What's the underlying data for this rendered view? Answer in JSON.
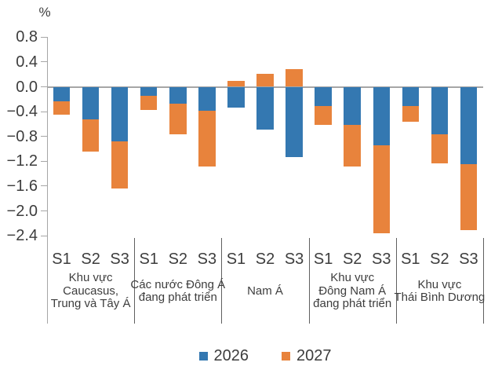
{
  "chart_data": {
    "type": "bar",
    "stacked": true,
    "title": "",
    "unit_label": "%",
    "ylim": [
      -2.4,
      0.8
    ],
    "yticks": [
      0.8,
      0.4,
      0.0,
      -0.4,
      -0.8,
      -1.2,
      -1.6,
      -2.0,
      -2.4
    ],
    "ytick_labels": [
      "0.8",
      "0.4",
      "0.0",
      "−0.4",
      "−0.8",
      "−1.2",
      "−1.6",
      "−2.0",
      "−2.4"
    ],
    "grid": false,
    "legend_position": "bottom",
    "seasons": [
      "S1",
      "S2",
      "S3"
    ],
    "series": [
      {
        "name": "2026",
        "color": "#3478B1"
      },
      {
        "name": "2027",
        "color": "#E8833C"
      }
    ],
    "groups": [
      {
        "label": "Khu vực Caucasus, Trung và Tây Á",
        "label_lines": [
          "Khu vực",
          "Caucasus,",
          "Trung và Tây Á"
        ],
        "values": [
          [
            -0.24,
            -0.52,
            -0.88
          ],
          [
            -0.21,
            -0.52,
            -0.76
          ]
        ]
      },
      {
        "label": "Các nước Đông Á đang phát triển",
        "label_lines": [
          "Các nước Đông Á",
          "đang phát triển"
        ],
        "values": [
          [
            -0.15,
            -0.27,
            -0.38
          ],
          [
            -0.22,
            -0.49,
            -0.9
          ]
        ]
      },
      {
        "label": "Nam Á",
        "label_lines": [
          "Nam Á"
        ],
        "values": [
          [
            -0.33,
            -0.69,
            -1.13
          ],
          [
            0.1,
            0.21,
            0.29
          ]
        ]
      },
      {
        "label": "Khu vực Đông Nam Á đang phát triển",
        "label_lines": [
          "Khu vực",
          "Đông Nam Á",
          "đang phát triển"
        ],
        "values": [
          [
            -0.31,
            -0.62,
            -0.94
          ],
          [
            -0.3,
            -0.66,
            -1.42
          ]
        ]
      },
      {
        "label": "Khu vực Thái Bình Dương",
        "label_lines": [
          "Khu vực",
          "Thái Bình Dương"
        ],
        "values": [
          [
            -0.31,
            -0.77,
            -1.25
          ],
          [
            -0.25,
            -0.46,
            -1.06
          ]
        ]
      }
    ]
  }
}
